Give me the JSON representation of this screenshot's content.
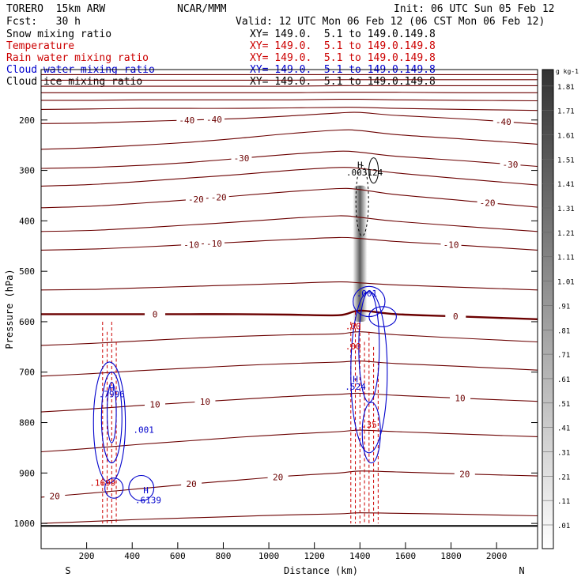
{
  "header": {
    "model": "TORERO  15km ARW",
    "center": "NCAR/MMM",
    "init": "Init: 06 UTC Sun 05 Feb 12",
    "fcst": "Fcst:   30 h",
    "valid": "Valid: 12 UTC Mon 06 Feb 12 (06 CST Mon 06 Feb 12)",
    "fields": [
      {
        "name": "Snow mixing ratio",
        "color": "#000000",
        "xy": ""
      },
      {
        "name": "Temperature",
        "color": "#cc0000",
        "xy": "XY= 149.0.  5.1 to 149.0.149.8"
      },
      {
        "name": "Rain water mixing ratio",
        "color": "#cc0000",
        "xy": "XY= 149.0.  5.1 to 149.0.149.8"
      },
      {
        "name": "Cloud water mixing ratio",
        "color": "#0000cc",
        "xy": "XY= 149.0.  5.1 to 149.0.149.8"
      },
      {
        "name": "Cloud ice mixing ratio",
        "color": "#000000",
        "xy": "XY= 149.0.  5.1 to 149.0.149.8"
      }
    ],
    "first_xy": "XY= 149.0.  5.1 to 149.0.149.8"
  },
  "chart_data": {
    "type": "contour",
    "title": "",
    "xlabel": "Distance (km)",
    "ylabel": "Pressure (hPa)",
    "xlim": [
      0,
      2180
    ],
    "ylim": [
      1050,
      100
    ],
    "x_ticks": [
      200,
      400,
      600,
      800,
      1000,
      1200,
      1400,
      1600,
      1800,
      2000
    ],
    "y_ticks": [
      200,
      300,
      400,
      500,
      600,
      700,
      800,
      900,
      1000
    ],
    "x_end_labels": {
      "left": "S",
      "right": "N"
    },
    "colorbar": {
      "unit": "g kg-1",
      "levels": [
        ".01",
        ".11",
        ".21",
        ".31",
        ".41",
        ".51",
        ".61",
        ".71",
        ".81",
        ".91",
        "1.01",
        "1.11",
        "1.21",
        "1.31",
        "1.41",
        "1.51",
        "1.61",
        "1.71",
        "1.81"
      ]
    },
    "temperature_contours": [
      {
        "p": [
          110,
          110,
          110,
          110,
          110,
          110,
          110,
          110,
          110,
          110,
          110
        ]
      },
      {
        "p": [
          121,
          121,
          121,
          121,
          121,
          121,
          120,
          120,
          120,
          120,
          120
        ]
      },
      {
        "p": [
          133,
          133,
          133,
          133,
          133,
          133,
          132,
          132,
          132,
          132,
          132
        ]
      },
      {
        "p": [
          146,
          146,
          146,
          146,
          146,
          146,
          145,
          145,
          145,
          146,
          146
        ]
      },
      {
        "p": [
          161,
          161,
          160,
          160,
          160,
          160,
          159,
          159,
          160,
          161,
          162
        ]
      },
      {
        "p": [
          179,
          178,
          177,
          177,
          177,
          176,
          175,
          175,
          177,
          179,
          181
        ]
      },
      {
        "label": -40,
        "p": [
          207,
          206,
          203,
          200,
          197,
          192,
          186,
          185,
          191,
          198,
          208
        ],
        "label_x": [
          640,
          760,
          2030
        ]
      },
      {
        "p": [
          258,
          255,
          250,
          244,
          236,
          227,
          220,
          221,
          229,
          238,
          248
        ]
      },
      {
        "label": -30,
        "p": [
          296,
          294,
          290,
          284,
          276,
          268,
          262,
          264,
          272,
          281,
          292
        ],
        "label_x": [
          880,
          2060
        ]
      },
      {
        "p": [
          331,
          328,
          322,
          315,
          308,
          300,
          294,
          296,
          305,
          317,
          329
        ]
      },
      {
        "label": -20,
        "p": [
          374,
          371,
          365,
          358,
          350,
          342,
          336,
          338,
          348,
          360,
          373
        ],
        "label_x": [
          680,
          780,
          1960
        ]
      },
      {
        "p": [
          421,
          419,
          414,
          408,
          402,
          395,
          390,
          393,
          401,
          411,
          421
        ]
      },
      {
        "label": -10,
        "p": [
          458,
          456,
          452,
          447,
          442,
          437,
          433,
          435,
          441,
          449,
          458
        ],
        "label_x": [
          660,
          760,
          1800
        ]
      },
      {
        "p": [
          537,
          536,
          533,
          530,
          527,
          524,
          521,
          523,
          527,
          532,
          537
        ]
      },
      {
        "label": 0,
        "bold": true,
        "p": [
          585,
          585,
          585,
          585,
          585,
          586,
          587,
          578,
          585,
          590,
          595
        ],
        "label_x": [
          500,
          1820
        ]
      },
      {
        "p": [
          647,
          643,
          638,
          633,
          629,
          626,
          624,
          620,
          626,
          633,
          640
        ]
      },
      {
        "p": [
          708,
          703,
          697,
          692,
          687,
          683,
          680,
          678,
          683,
          689,
          696
        ]
      },
      {
        "label": 10,
        "p": [
          779,
          773,
          766,
          760,
          754,
          748,
          744,
          742,
          746,
          752,
          758
        ],
        "label_x": [
          500,
          720,
          1840
        ]
      },
      {
        "p": [
          858,
          851,
          843,
          836,
          829,
          823,
          818,
          815,
          818,
          823,
          828
        ]
      },
      {
        "label": 20,
        "p": [
          948,
          940,
          931,
          922,
          914,
          906,
          900,
          896,
          898,
          902,
          906
        ],
        "label_x": [
          60,
          660,
          1040,
          1860
        ]
      },
      {
        "p": [
          1000,
          996,
          992,
          989,
          986,
          983,
          981,
          979,
          980,
          982,
          985
        ]
      }
    ],
    "temperature_x": [
      0,
      218,
      436,
      654,
      872,
      1090,
      1308,
      1400,
      1560,
      1860,
      2180
    ],
    "ground_pressure": 1005,
    "cloud_water_labels": [
      {
        "text": ".7996",
        "x": 310,
        "p": 750
      },
      {
        "text": ".001",
        "x": 450,
        "p": 820
      },
      {
        "text": ".6139",
        "x": 470,
        "p": 960
      },
      {
        "text": ".001",
        "x": 1430,
        "p": 550
      },
      {
        "text": ".524",
        "x": 1380,
        "p": 735
      }
    ],
    "rain_water_labels": [
      {
        "text": ".1699",
        "x": 270,
        "p": 925
      },
      {
        "text": ".35",
        "x": 1440,
        "p": 810
      },
      {
        "text": ".00",
        "x": 1370,
        "p": 615
      },
      {
        "text": ".00",
        "x": 1370,
        "p": 655
      }
    ],
    "snow_labels": [
      {
        "text": ".003124",
        "x": 1420,
        "p": 310
      }
    ],
    "high_markers": [
      {
        "x": 310,
        "p": 737,
        "color": "#0000cc"
      },
      {
        "x": 460,
        "p": 940,
        "color": "#0000cc"
      },
      {
        "x": 1380,
        "p": 720,
        "color": "#0000cc"
      },
      {
        "x": 1400,
        "p": 295,
        "color": "#000000"
      }
    ]
  }
}
